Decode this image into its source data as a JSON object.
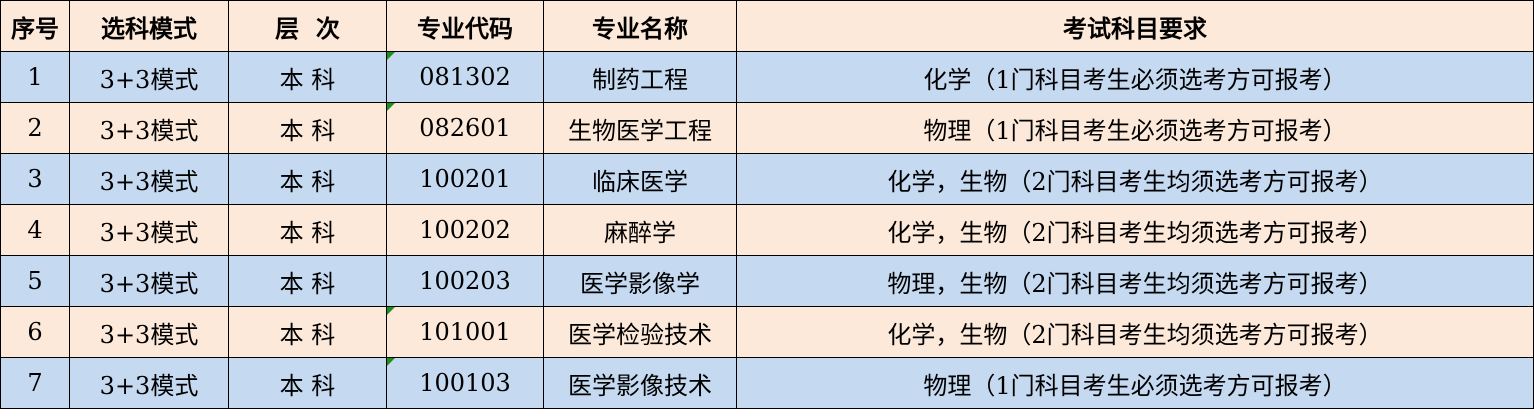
{
  "headers": [
    "序号",
    "选科模式",
    "层  次",
    "专业代码",
    "专业名称",
    "考试科目要求"
  ],
  "row_colors": {
    "odd": "#C5D9F1",
    "even": "#FDE9D9",
    "header": "#FDE9D9",
    "flag": "#1E8E1E"
  },
  "rows": [
    {
      "no": "1",
      "mode": "3+3模式",
      "level": "本 科",
      "code": "081302",
      "name": "制药工程",
      "req": "化学（1门科目考生必须选考方可报考）",
      "flag": true
    },
    {
      "no": "2",
      "mode": "3+3模式",
      "level": "本 科",
      "code": "082601",
      "name": "生物医学工程",
      "req": "物理（1门科目考生必须选考方可报考）",
      "flag": true
    },
    {
      "no": "3",
      "mode": "3+3模式",
      "level": "本 科",
      "code": "100201",
      "name": "临床医学",
      "req": "化学，生物（2门科目考生均须选考方可报考）",
      "flag": false
    },
    {
      "no": "4",
      "mode": "3+3模式",
      "level": "本 科",
      "code": "100202",
      "name": "麻醉学",
      "req": "化学，生物（2门科目考生均须选考方可报考）",
      "flag": false
    },
    {
      "no": "5",
      "mode": "3+3模式",
      "level": "本 科",
      "code": "100203",
      "name": "医学影像学",
      "req": "物理，生物（2门科目考生均须选考方可报考）",
      "flag": false
    },
    {
      "no": "6",
      "mode": "3+3模式",
      "level": "本 科",
      "code": "101001",
      "name": "医学检验技术",
      "req": "化学，生物（2门科目考生均须选考方可报考）",
      "flag": true
    },
    {
      "no": "7",
      "mode": "3+3模式",
      "level": "本 科",
      "code": "100103",
      "name": "医学影像技术",
      "req": "物理（1门科目考生必须选考方可报考）",
      "flag": true
    }
  ]
}
